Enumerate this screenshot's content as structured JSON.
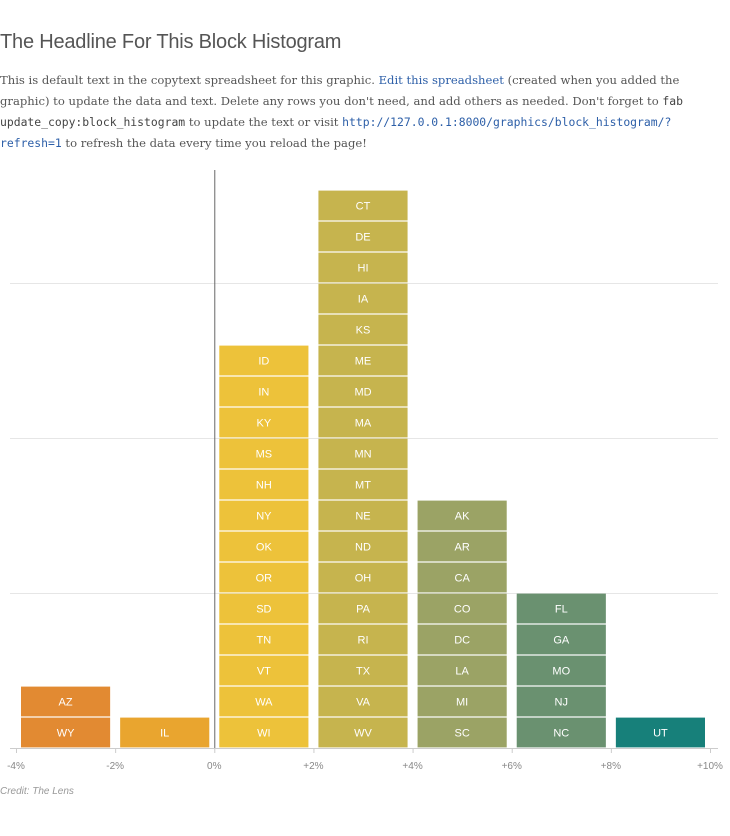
{
  "header": {
    "title": "The Headline For This Block Histogram"
  },
  "intro": {
    "text_1": "This is default text in the copytext spreadsheet for this graphic. ",
    "link_text": "Edit this spreadsheet",
    "text_2": " (created when you added the graphic) to update the data and text. Delete any rows you don't need, and add others as needed. Don't forget to ",
    "command": "fab update_copy:block_histogram",
    "text_3": " to update the text or visit ",
    "url": "http://127.0.0.1:8000/graphics/block_histogram/?refresh=1",
    "text_4": " to refresh the data every time you reload the page!"
  },
  "footer": {
    "credit": "Credit: The Lens"
  },
  "chart_data": {
    "type": "bar",
    "title": "",
    "xlabel": "",
    "ylabel": "",
    "x_ticks": [
      "-4%",
      "-2%",
      "0%",
      "+2%",
      "+4%",
      "+6%",
      "+8%",
      "+10%"
    ],
    "xlim": [
      -4,
      10
    ],
    "ylim": [
      0,
      18
    ],
    "grid": true,
    "bins": [
      {
        "range": [
          -4,
          -2
        ],
        "color": "#e28a32",
        "states": [
          "WY",
          "AZ"
        ]
      },
      {
        "range": [
          -2,
          0
        ],
        "color": "#e9a52f",
        "states": [
          "IL"
        ]
      },
      {
        "range": [
          0,
          2
        ],
        "color": "#edc23a",
        "states": [
          "WI",
          "WA",
          "VT",
          "TN",
          "SD",
          "OR",
          "OK",
          "NY",
          "NH",
          "MS",
          "KY",
          "IN",
          "ID"
        ]
      },
      {
        "range": [
          2,
          4
        ],
        "color": "#c6b44e",
        "states": [
          "WV",
          "VA",
          "TX",
          "RI",
          "PA",
          "OH",
          "ND",
          "NE",
          "MT",
          "MN",
          "MA",
          "MD",
          "ME",
          "KS",
          "IA",
          "HI",
          "DE",
          "CT"
        ]
      },
      {
        "range": [
          4,
          6
        ],
        "color": "#9ba365",
        "states": [
          "SC",
          "MI",
          "LA",
          "DC",
          "CO",
          "CA",
          "AR",
          "AK"
        ]
      },
      {
        "range": [
          6,
          8
        ],
        "color": "#6a9170",
        "states": [
          "NC",
          "NJ",
          "MO",
          "GA",
          "FL"
        ]
      },
      {
        "range": [
          8,
          10
        ],
        "color": "#17807a",
        "states": [
          "UT"
        ]
      }
    ],
    "values": [
      2,
      1,
      13,
      18,
      8,
      5,
      1
    ]
  }
}
